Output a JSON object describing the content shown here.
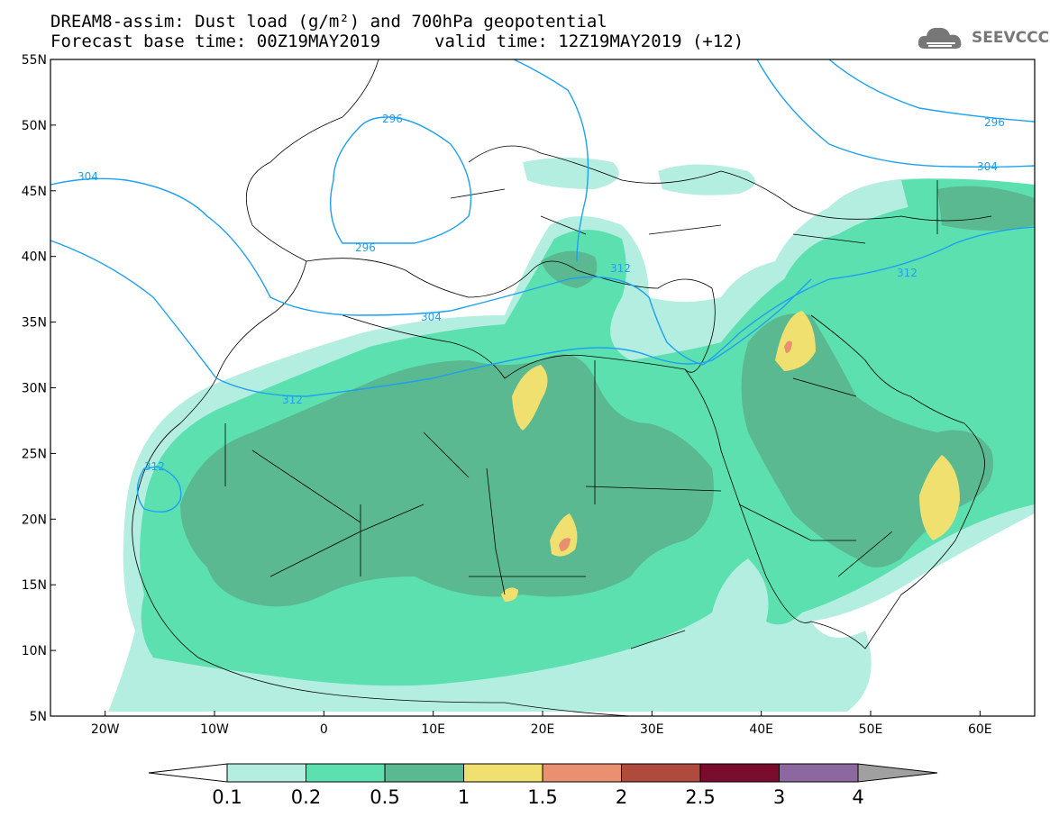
{
  "header": {
    "title_line1": "DREAM8-assim: Dust load (g/m²) and 700hPa geopotential",
    "title_line2_left": "Forecast base time: 00Z19MAY2019",
    "title_line2_right": "valid time: 12Z19MAY2019 (+12)"
  },
  "logo": {
    "text": "SEEVCCC",
    "icon": "cloud-logo-icon"
  },
  "map": {
    "lon_range": [
      -25,
      65
    ],
    "lat_range": [
      5,
      55
    ],
    "lat_ticks": [
      "55N",
      "50N",
      "45N",
      "40N",
      "35N",
      "30N",
      "25N",
      "20N",
      "15N",
      "10N",
      "5N"
    ],
    "lon_ticks": [
      "20W",
      "10W",
      "0",
      "10E",
      "20E",
      "30E",
      "40E",
      "50E",
      "60E"
    ],
    "contour_labels": [
      "296",
      "296",
      "296",
      "304",
      "304",
      "304",
      "312",
      "312",
      "312",
      "312"
    ]
  },
  "colorbar": {
    "labels": [
      "0.1",
      "0.2",
      "0.5",
      "1",
      "1.5",
      "2",
      "2.5",
      "3",
      "4"
    ],
    "colors": [
      "#b4eee0",
      "#5de0b0",
      "#5ab990",
      "#f0e070",
      "#e89070",
      "#b04a3c",
      "#7a0d2e",
      "#8d68a0",
      "#a0a0a0"
    ],
    "under_color": "#ffffff"
  }
}
